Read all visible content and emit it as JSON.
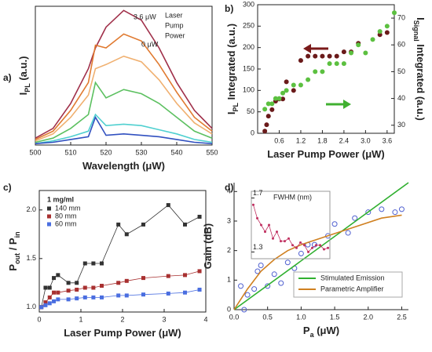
{
  "chart_data": [
    {
      "type": "line",
      "label": "a)",
      "xlabel": [
        "Wavelength (μW)"
      ],
      "ylabel": [
        "I",
        "PL",
        " (a.u.)"
      ],
      "xlim": [
        500,
        550
      ],
      "xticks": [
        500,
        510,
        520,
        530,
        540,
        550
      ],
      "ylim": [
        0,
        1
      ],
      "frame": "box",
      "x": [
        500,
        505,
        510,
        515,
        517,
        520,
        525,
        530,
        535,
        540,
        545,
        550
      ],
      "series": [
        {
          "color": "#a0304a",
          "values": [
            0.05,
            0.12,
            0.3,
            0.55,
            0.7,
            0.85,
            0.97,
            0.9,
            0.7,
            0.45,
            0.25,
            0.12
          ]
        },
        {
          "color": "#e07a30",
          "values": [
            0.04,
            0.1,
            0.25,
            0.45,
            0.72,
            0.7,
            0.8,
            0.75,
            0.58,
            0.38,
            0.2,
            0.1
          ]
        },
        {
          "color": "#f0b070",
          "values": [
            0.03,
            0.08,
            0.2,
            0.36,
            0.55,
            0.58,
            0.64,
            0.6,
            0.47,
            0.3,
            0.16,
            0.08
          ]
        },
        {
          "color": "#5cc060",
          "values": [
            0.02,
            0.05,
            0.12,
            0.22,
            0.45,
            0.34,
            0.4,
            0.37,
            0.3,
            0.2,
            0.1,
            0.05
          ]
        },
        {
          "color": "#50d0d0",
          "values": [
            0.01,
            0.03,
            0.06,
            0.1,
            0.22,
            0.14,
            0.15,
            0.14,
            0.11,
            0.08,
            0.04,
            0.02
          ]
        },
        {
          "color": "#3050c0",
          "values": [
            0.01,
            0.02,
            0.04,
            0.06,
            0.2,
            0.07,
            0.08,
            0.07,
            0.06,
            0.04,
            0.02,
            0.01
          ]
        }
      ],
      "annotations": [
        "3.6 μW",
        "0 μW",
        "Laser",
        "Pump",
        "Power"
      ]
    },
    {
      "type": "scatter",
      "label": "b)",
      "xlabel": [
        "Laser Pump Power (μW)"
      ],
      "ylabel": [
        "I",
        "PL",
        " Integrated (a.u.)"
      ],
      "y2label": [
        "I",
        "Signal",
        " Integrated (a.u.)"
      ],
      "xlim": [
        0,
        3.8
      ],
      "xticks": [
        0.6,
        1.2,
        1.8,
        2.4,
        {
          "value": 3,
          "label": "3.0"
        },
        3.6
      ],
      "ylim": [
        0,
        300
      ],
      "yticks": [
        0,
        50,
        100,
        150,
        200,
        250,
        300
      ],
      "y2lim": [
        27,
        75
      ],
      "y2ticks": [
        30,
        40,
        50,
        60,
        70
      ],
      "frame": "box",
      "series": [
        {
          "color": "#6a1a1a",
          "marker": "circle",
          "x": [
            0.2,
            0.25,
            0.3,
            0.4,
            0.5,
            0.6,
            0.7,
            0.8,
            1.0,
            1.2,
            1.4,
            1.6,
            1.8,
            2.0,
            2.2,
            2.4,
            2.6,
            2.8,
            3.4,
            3.6
          ],
          "values": [
            5,
            20,
            40,
            55,
            75,
            80,
            80,
            120,
            100,
            170,
            180,
            180,
            180,
            180,
            180,
            190,
            190,
            210,
            230,
            235
          ]
        },
        {
          "color": "#5cc040",
          "marker": "circle",
          "axis": "y2",
          "x": [
            0.2,
            0.3,
            0.4,
            0.5,
            0.6,
            0.7,
            0.8,
            1.0,
            1.2,
            1.4,
            1.6,
            1.8,
            2.0,
            2.2,
            2.4,
            2.6,
            2.8,
            3.0,
            3.2,
            3.4,
            3.6,
            3.8
          ],
          "values": [
            36,
            38,
            38,
            40,
            40,
            42,
            43,
            45,
            45,
            47,
            50,
            50,
            53,
            53,
            53,
            57,
            60,
            57,
            62,
            65,
            67,
            72
          ]
        }
      ]
    },
    {
      "type": "line",
      "label": "c)",
      "xlabel": [
        "Laser Pump Power (μW)"
      ],
      "ylabel": [
        "P",
        "out",
        " / P",
        "in"
      ],
      "xlim": [
        0,
        4
      ],
      "xticks": [
        0,
        1,
        2,
        3,
        4
      ],
      "ylim": [
        0.95,
        2.2
      ],
      "yticks": [
        {
          "value": 1,
          "label": "1.0"
        },
        {
          "value": 1.5,
          "label": "1.5"
        },
        {
          "value": 2,
          "label": "2.0"
        }
      ],
      "frame": "box",
      "markers": true,
      "legend": "upper left",
      "legend_title": "1 mg/ml",
      "x": [
        0.05,
        0.15,
        0.25,
        0.35,
        0.45,
        0.7,
        0.9,
        1.1,
        1.3,
        1.5,
        1.9,
        2.1,
        2.5,
        3.1,
        3.5,
        3.85
      ],
      "series": [
        {
          "name": "140 mm",
          "color": "#333333",
          "marker": "square",
          "values": [
            1.0,
            1.2,
            1.2,
            1.3,
            1.33,
            1.25,
            1.25,
            1.45,
            1.45,
            1.45,
            1.85,
            1.75,
            1.85,
            2.05,
            1.85,
            1.93
          ]
        },
        {
          "name": "80 mm",
          "color": "#a83030",
          "marker": "square",
          "values": [
            1.0,
            1.05,
            1.1,
            1.15,
            1.15,
            1.17,
            1.18,
            1.2,
            1.2,
            1.22,
            1.25,
            1.27,
            1.3,
            1.32,
            1.33,
            1.37
          ]
        },
        {
          "name": "60 mm",
          "color": "#4a6ee0",
          "marker": "square",
          "values": [
            1.0,
            1.02,
            1.04,
            1.06,
            1.08,
            1.08,
            1.09,
            1.1,
            1.1,
            1.1,
            1.12,
            1.12,
            1.13,
            1.14,
            1.15,
            1.18
          ]
        }
      ]
    },
    {
      "type": "scatter",
      "label": "d)",
      "xlabel": [
        "P",
        "a",
        " (μW)"
      ],
      "ylabel": [
        "Gain (dB)"
      ],
      "xlim": [
        0,
        2.6
      ],
      "xticks": [
        {
          "value": 0,
          "label": "0.0"
        },
        0.5,
        {
          "value": 1,
          "label": "1.0"
        },
        1.5,
        {
          "value": 2,
          "label": "2.0"
        },
        2.5
      ],
      "ylim": [
        0,
        4.3
      ],
      "yticks": [
        0,
        1,
        2,
        3,
        4
      ],
      "frame": "axes",
      "legend": "lower right",
      "series": [
        {
          "color": "#5060d0",
          "marker": "open-circle",
          "x": [
            0.1,
            0.15,
            0.2,
            0.3,
            0.35,
            0.4,
            0.5,
            0.6,
            0.7,
            0.8,
            0.9,
            1.0,
            1.1,
            1.2,
            1.4,
            1.5,
            1.7,
            1.8,
            2.0,
            2.2,
            2.4,
            2.5
          ],
          "values": [
            0.8,
            0,
            0.5,
            0.7,
            1.3,
            1.5,
            0.8,
            1.2,
            0.9,
            1.6,
            1.4,
            1.9,
            2.2,
            2.2,
            2.5,
            2.9,
            2.6,
            3.1,
            3.3,
            3.4,
            3.3,
            3.4
          ]
        },
        {
          "name": "Stimulated Emission",
          "color": "#30b030",
          "mode": "lines",
          "x": [
            0,
            2.6
          ],
          "values": [
            0,
            4.3
          ]
        },
        {
          "name": "Parametric Amplifier",
          "color": "#d08020",
          "mode": "lines",
          "x": [
            0,
            0.2,
            0.4,
            0.6,
            0.8,
            1.0,
            1.4,
            1.8,
            2.2,
            2.5
          ],
          "values": [
            0,
            0.7,
            1.3,
            1.7,
            2.0,
            2.2,
            2.5,
            2.8,
            3.1,
            3.2
          ]
        }
      ],
      "inset": {
        "type": "line",
        "title": "FWHM (nm)",
        "ylim": [
          1.25,
          1.75
        ],
        "yticks": [
          1.7,
          1.3
        ],
        "frame": "box",
        "markers": true,
        "categories": [
          null,
          null,
          null,
          null,
          null,
          null,
          null,
          null,
          null,
          null,
          null,
          null,
          null,
          null,
          null,
          null,
          null,
          null,
          null,
          null
        ],
        "series": [
          {
            "color": "#c03060",
            "marker": "dot",
            "values": [
              1.65,
              1.55,
              1.5,
              1.45,
              1.5,
              1.4,
              1.45,
              1.38,
              1.38,
              1.4,
              1.35,
              1.33,
              1.37,
              1.35,
              1.3,
              1.33,
              1.35,
              1.35,
              1.32,
              1.33
            ]
          }
        ]
      }
    }
  ]
}
